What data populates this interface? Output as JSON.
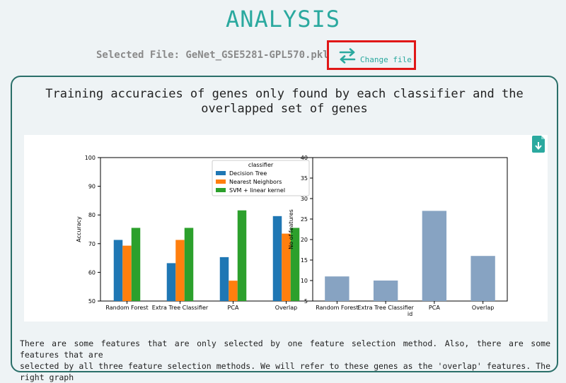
{
  "header": {
    "title": "ANALYSIS",
    "selected_file": "Selected File: GeNet_GSE5281-GPL570.pkl",
    "change_file_label": "Change file"
  },
  "card": {
    "title_line1": "Training accuracies of genes only found by each classifier and the",
    "title_line2": "overlapped set of genes",
    "description_line1": "There are some features that are only selected by one feature selection method. Also, there are some features that are",
    "description_line2": "selected by all three feature selection methods. We will refer to these genes as the 'overlap' features. The right graph"
  },
  "chart_data": [
    {
      "type": "bar",
      "categories": [
        "Random Forest",
        "Extra Tree Classifier",
        "PCA",
        "Overlap"
      ],
      "series": [
        {
          "name": "Decision Tree",
          "color": "#1f77b4",
          "values": [
            71.3,
            63.2,
            65.3,
            79.6
          ]
        },
        {
          "name": "Nearest Neighbors",
          "color": "#ff7f0e",
          "values": [
            69.3,
            71.3,
            57.1,
            73.5
          ]
        },
        {
          "name": "SVM + linear kernel",
          "color": "#2ca02c",
          "values": [
            75.5,
            75.5,
            81.6,
            75.5
          ]
        }
      ],
      "ylabel": "Accuracy",
      "ylim": [
        50,
        100
      ],
      "yticks": [
        50,
        60,
        70,
        80,
        90,
        100
      ],
      "legend_title": "classifier",
      "legend_position": "top-right"
    },
    {
      "type": "bar",
      "categories": [
        "Random Forest",
        "Extra Tree Classifier",
        "PCA",
        "Overlap"
      ],
      "values": [
        11,
        10,
        27,
        16
      ],
      "color": "#87a3c2",
      "xlabel": "id",
      "ylabel": "No of features",
      "ylim": [
        5,
        40
      ],
      "yticks": [
        5,
        10,
        15,
        20,
        25,
        30,
        35,
        40
      ]
    }
  ]
}
